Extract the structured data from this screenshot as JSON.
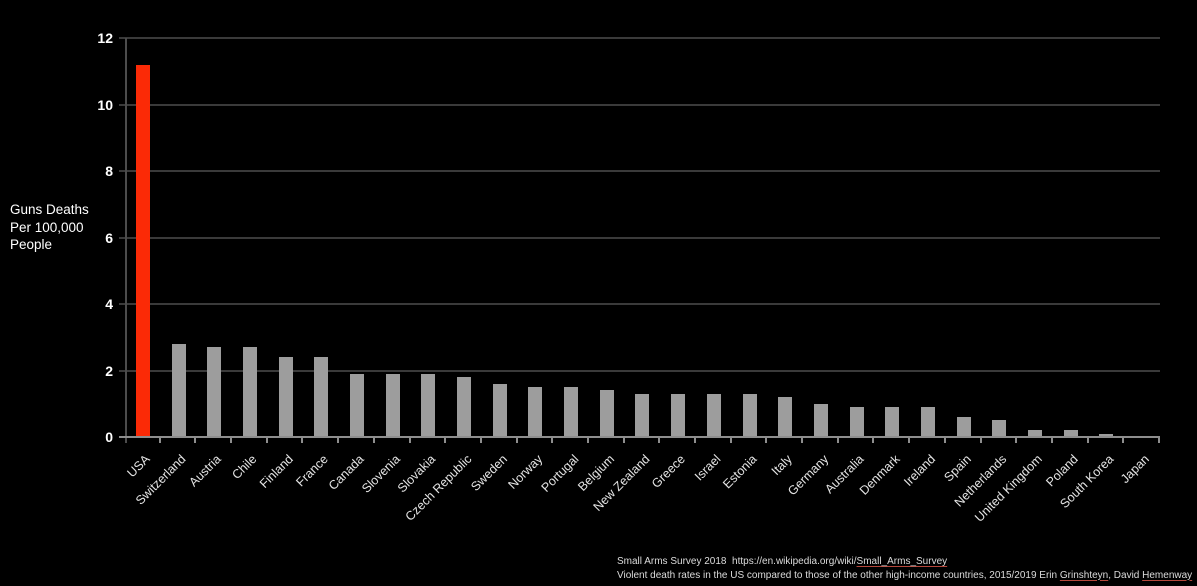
{
  "chart_data": {
    "type": "bar",
    "title": "",
    "ylabel_lines": [
      "Guns Deaths",
      "Per 100,000",
      "People"
    ],
    "categories": [
      "USA",
      "Switzerland",
      "Austria",
      "Chile",
      "Finland",
      "France",
      "Canada",
      "Slovenia",
      "Slovakia",
      "Czech Republic",
      "Sweden",
      "Norway",
      "Portugal",
      "Belgium",
      "New Zealand",
      "Greece",
      "Israel",
      "Estonia",
      "Italy",
      "Germany",
      "Australia",
      "Denmark",
      "Ireland",
      "Spain",
      "Netherlands",
      "United Kingdom",
      "Poland",
      "South Korea",
      "Japan"
    ],
    "values": [
      11.2,
      2.8,
      2.7,
      2.7,
      2.4,
      2.4,
      1.9,
      1.9,
      1.9,
      1.8,
      1.6,
      1.5,
      1.5,
      1.4,
      1.3,
      1.3,
      1.3,
      1.3,
      1.2,
      1.0,
      0.9,
      0.9,
      0.9,
      0.6,
      0.5,
      0.2,
      0.2,
      0.1,
      0.02
    ],
    "highlight_category": "USA",
    "highlight_color": "#fb2a06",
    "bar_color": "#9d9d9d",
    "background_color": "#000000",
    "ylim": [
      0,
      12
    ],
    "yticks": [
      0,
      2,
      4,
      6,
      8,
      10,
      12
    ],
    "grid": "horizontal",
    "legend": "none"
  },
  "footer": {
    "line1_prefix": "Small Arms Survey 2018  https://en.wikipedia.org/wiki/",
    "line1_link": "Small_Arms_Survey",
    "line2_prefix": "Violent death rates in the US compared to those of the other high-income countries, 2015/2019 Erin ",
    "line2_author1": "Grinshteyn",
    "line2_mid": ", David ",
    "line2_author2": "Hemenway"
  }
}
